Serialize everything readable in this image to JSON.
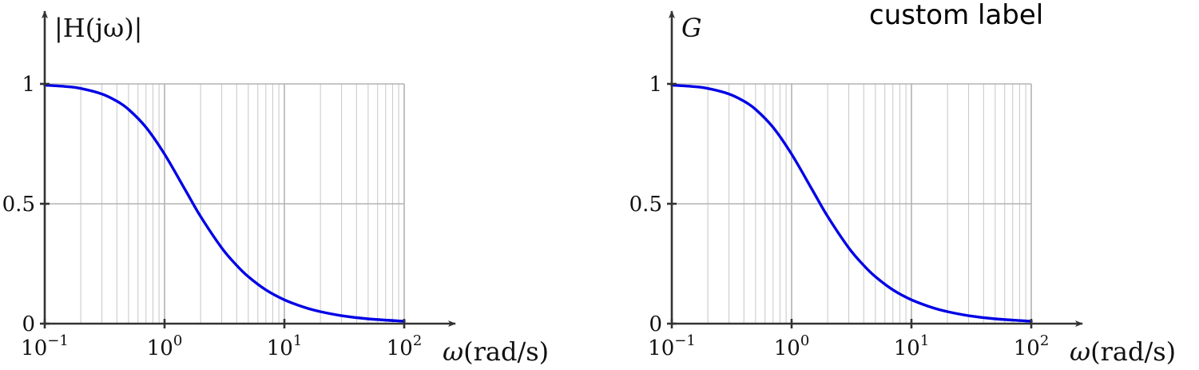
{
  "chart_data": [
    {
      "type": "line",
      "x_scale": "log",
      "xlim": [
        0.1,
        100
      ],
      "ylim": [
        0,
        1
      ],
      "grid": true,
      "xlabel": {
        "omega": "ω",
        "unit": "(rad/s)"
      },
      "ylabel": {
        "main": "|H(jω)|"
      },
      "xticks": [
        {
          "base": "10",
          "exp": "−1",
          "value": 0.1
        },
        {
          "base": "10",
          "exp": "0",
          "value": 1
        },
        {
          "base": "10",
          "exp": "1",
          "value": 10
        },
        {
          "base": "10",
          "exp": "2",
          "value": 100
        }
      ],
      "yticks": [
        {
          "label": "0",
          "value": 0
        },
        {
          "label": "0.5",
          "value": 0.5
        },
        {
          "label": "1",
          "value": 1
        }
      ],
      "series": [
        {
          "color": "#0000e6",
          "x": [
            0.1,
            0.15,
            0.2,
            0.3,
            0.4,
            0.5,
            0.7,
            1,
            1.5,
            2,
            3,
            4,
            5,
            7,
            10,
            15,
            20,
            30,
            50,
            100
          ],
          "y": [
            0.995,
            0.989,
            0.981,
            0.958,
            0.928,
            0.894,
            0.819,
            0.707,
            0.555,
            0.447,
            0.316,
            0.243,
            0.196,
            0.141,
            0.0995,
            0.0665,
            0.05,
            0.0333,
            0.02,
            0.01
          ]
        }
      ]
    },
    {
      "type": "line",
      "x_scale": "log",
      "xlim": [
        0.1,
        100
      ],
      "ylim": [
        0,
        1
      ],
      "grid": true,
      "xlabel": {
        "omega": "ω",
        "unit": "(rad/s)"
      },
      "ylabel": {
        "main": "G"
      },
      "annotation": "custom label",
      "xticks": [
        {
          "base": "10",
          "exp": "−1",
          "value": 0.1
        },
        {
          "base": "10",
          "exp": "0",
          "value": 1
        },
        {
          "base": "10",
          "exp": "1",
          "value": 10
        },
        {
          "base": "10",
          "exp": "2",
          "value": 100
        }
      ],
      "yticks": [
        {
          "label": "0",
          "value": 0
        },
        {
          "label": "0.5",
          "value": 0.5
        },
        {
          "label": "1",
          "value": 1
        }
      ],
      "series": [
        {
          "color": "#0000e6",
          "x": [
            0.1,
            0.15,
            0.2,
            0.3,
            0.4,
            0.5,
            0.7,
            1,
            1.5,
            2,
            3,
            4,
            5,
            7,
            10,
            15,
            20,
            30,
            50,
            100
          ],
          "y": [
            0.995,
            0.989,
            0.981,
            0.958,
            0.928,
            0.894,
            0.819,
            0.707,
            0.555,
            0.447,
            0.316,
            0.243,
            0.196,
            0.141,
            0.0995,
            0.0665,
            0.05,
            0.0333,
            0.02,
            0.01
          ]
        }
      ]
    }
  ]
}
